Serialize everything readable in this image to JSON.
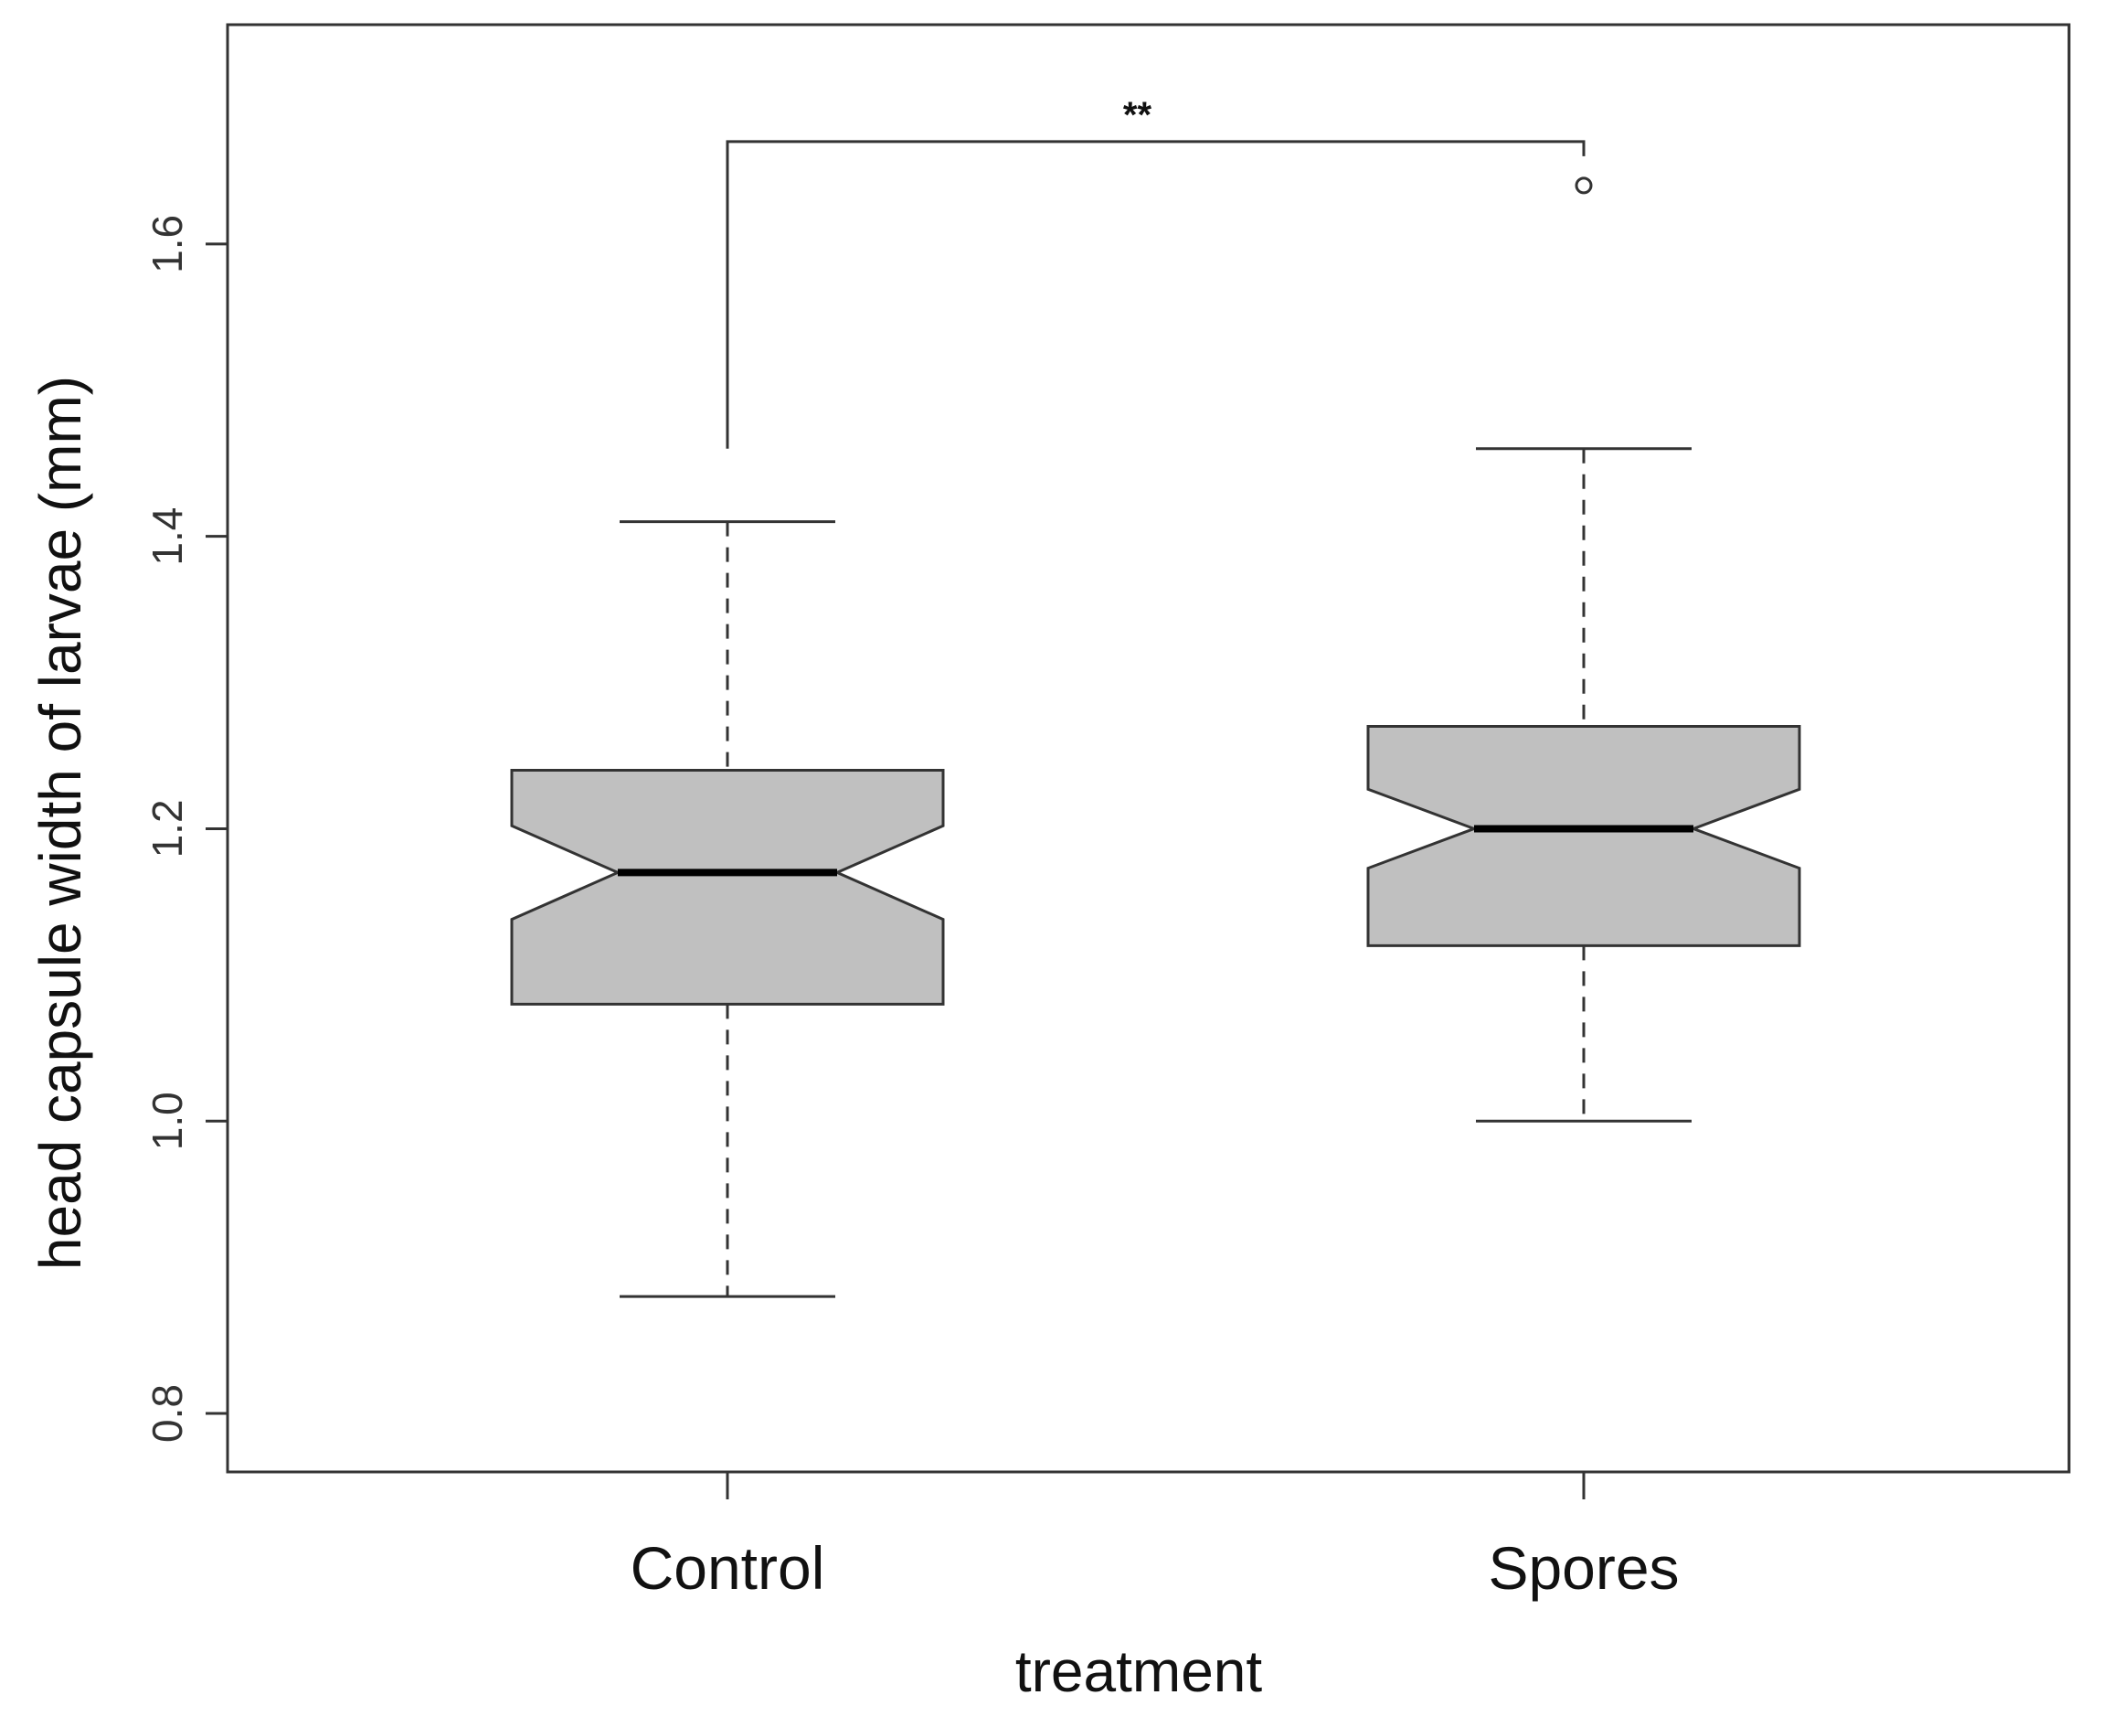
{
  "chart_data": {
    "type": "boxplot",
    "notched": true,
    "xlabel": "treatment",
    "ylabel": "head capsule width of larvae (mm)",
    "ylim": [
      0.76,
      1.75
    ],
    "yticks": [
      "0.8",
      "1.0",
      "1.2",
      "1.4",
      "1.6"
    ],
    "categories": [
      "Control",
      "Spores"
    ],
    "series": [
      {
        "whisker_low": 0.88,
        "q1": 1.08,
        "median": 1.17,
        "q3": 1.24,
        "whisker_high": 1.41,
        "notch_low": 1.138,
        "notch_high": 1.202,
        "outliers": []
      },
      {
        "whisker_low": 1.0,
        "q1": 1.12,
        "median": 1.2,
        "q3": 1.27,
        "whisker_high": 1.46,
        "notch_low": 1.173,
        "notch_high": 1.227,
        "outliers": [
          1.64
        ]
      }
    ],
    "annotation": {
      "label": "**",
      "from": "Control",
      "to": "Spores",
      "top": 1.67,
      "left_end": 1.46,
      "right_end": 1.66
    },
    "box_fill": "#c0c0c0",
    "line_color": "#333333",
    "grid": false
  }
}
